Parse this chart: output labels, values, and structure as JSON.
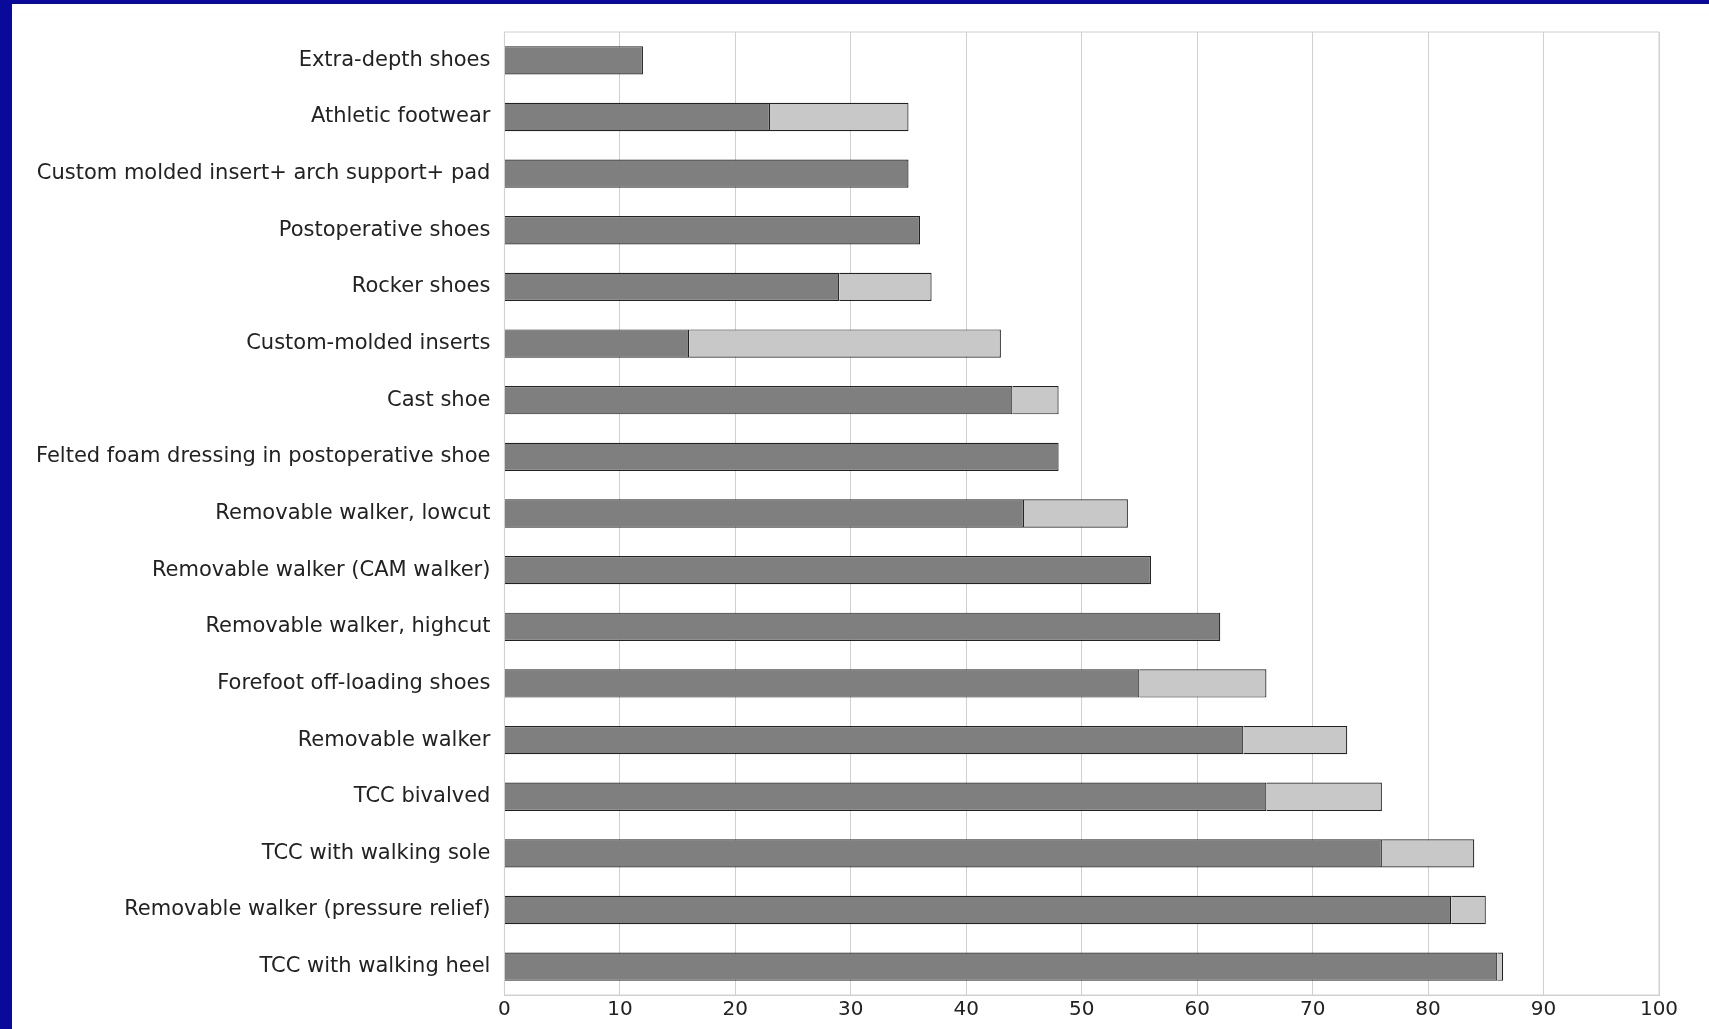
{
  "chart_data": {
    "type": "bar",
    "orientation": "horizontal",
    "stacked": true,
    "categories": [
      "Extra-depth shoes",
      "Athletic footwear",
      "Custom molded insert+ arch support+ pad",
      "Postoperative shoes",
      "Rocker shoes",
      "Custom-molded inserts",
      "Cast shoe",
      "Felted foam dressing in postoperative shoe",
      "Removable walker, lowcut",
      "Removable walker (CAM walker)",
      "Removable walker, highcut",
      "Forefoot off-loading shoes",
      "Removable walker",
      "TCC bivalved",
      "TCC with walking sole",
      "Removable walker (pressure relief)",
      "TCC with walking heel"
    ],
    "series": [
      {
        "color": "#7f7f7f",
        "values": [
          12,
          23,
          35,
          36,
          29,
          16,
          44,
          48,
          45,
          56,
          62,
          55,
          64,
          66,
          76,
          82,
          86
        ]
      },
      {
        "color": "#c8c8c8",
        "values": [
          null,
          12,
          null,
          null,
          8,
          27,
          4,
          null,
          9,
          null,
          null,
          11,
          9,
          10,
          8,
          3,
          0.5
        ]
      }
    ],
    "xlim": [
      0,
      100
    ],
    "xticks": [
      0,
      10,
      20,
      30,
      40,
      50,
      60,
      70,
      80,
      90,
      100
    ],
    "grid": "x",
    "legend": false
  }
}
